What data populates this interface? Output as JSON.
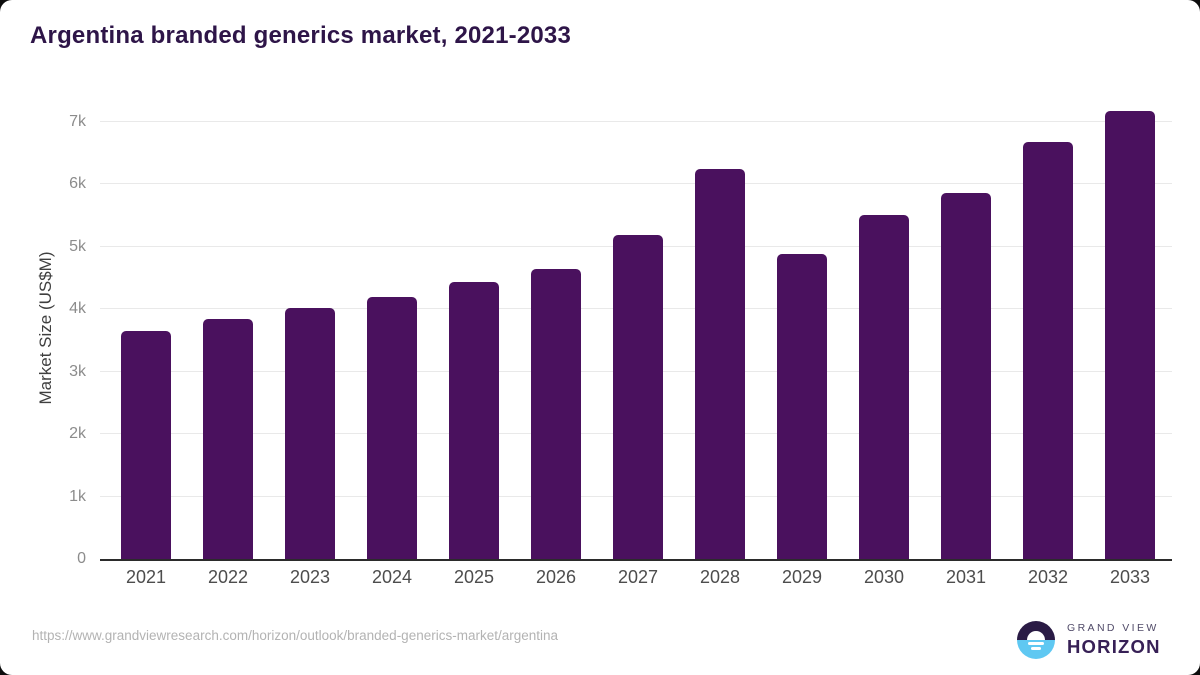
{
  "title": "Argentina branded generics market, 2021-2033",
  "chart_data": {
    "type": "bar",
    "title": "Argentina branded generics market, 2021-2033",
    "categories": [
      "2021",
      "2022",
      "2023",
      "2024",
      "2025",
      "2026",
      "2027",
      "2028",
      "2029",
      "2030",
      "2031",
      "2032",
      "2033"
    ],
    "values": [
      3660,
      3850,
      4020,
      4190,
      4430,
      4650,
      5190,
      6240,
      4890,
      5510,
      5860,
      6680,
      7170
    ],
    "xlabel": "",
    "ylabel": "Market Size (US$M)",
    "ylim": [
      0,
      7385
    ],
    "yticks": [
      {
        "value": 0,
        "label": "0"
      },
      {
        "value": 1000,
        "label": "1k"
      },
      {
        "value": 2000,
        "label": "2k"
      },
      {
        "value": 3000,
        "label": "3k"
      },
      {
        "value": 4000,
        "label": "4k"
      },
      {
        "value": 5000,
        "label": "5k"
      },
      {
        "value": 6000,
        "label": "6k"
      },
      {
        "value": 7000,
        "label": "7k"
      }
    ],
    "grid": "horizontal",
    "legend": "none",
    "bar_color": "#4a115e"
  },
  "colors": {
    "bar": "#4a115e",
    "title_text": "#2e1548",
    "axis_line": "#2b2b2b",
    "gridline": "#e9e9e9",
    "y_tick_text": "#8c8c8c",
    "x_tick_text": "#4d4d4d",
    "url_text": "#b3b3b3",
    "logo_dark": "#2a1b45",
    "logo_blue": "#5fc8f2"
  },
  "footer": {
    "source_url": "https://www.grandviewresearch.com/horizon/outlook/branded-generics-market/argentina",
    "logo": {
      "top_text": "GRAND VIEW",
      "bottom_text": "HORIZON"
    }
  }
}
